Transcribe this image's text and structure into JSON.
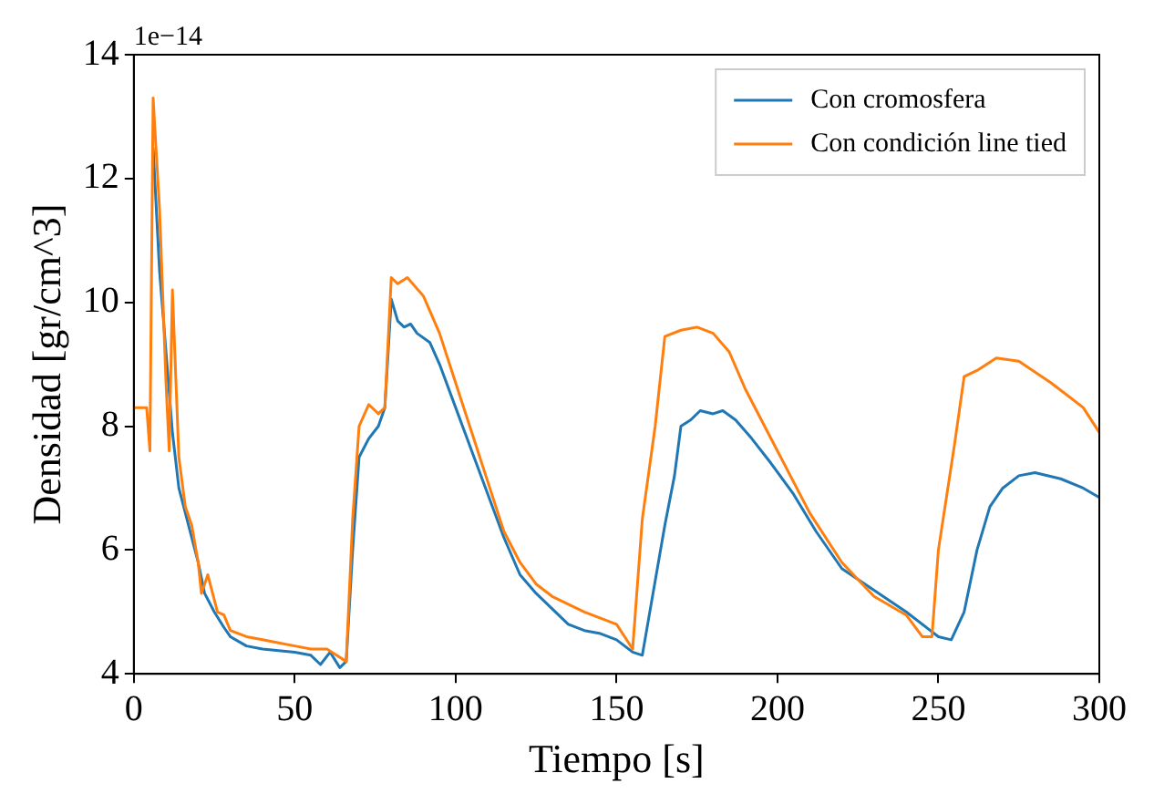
{
  "chart_data": {
    "type": "line",
    "xlabel": "Tiempo [s]",
    "ylabel": "Densidad [gr/cm^3]",
    "annotations": [
      "1e−14"
    ],
    "xlim": [
      0,
      300
    ],
    "xticks": [
      0,
      50,
      100,
      150,
      200,
      250,
      300
    ],
    "ylim": [
      4,
      14
    ],
    "yticks": [
      4,
      6,
      8,
      10,
      12,
      14
    ],
    "grid": false,
    "legend": "top right",
    "marker": "none",
    "line_style": "solid",
    "series": [
      {
        "name": "Con cromosfera",
        "color": "#1f77b4",
        "x": [
          6,
          8,
          12,
          14,
          16,
          20,
          22,
          25,
          28,
          30,
          35,
          40,
          50,
          55,
          58,
          61,
          64,
          66,
          68,
          70,
          73,
          76,
          78,
          80,
          82,
          84,
          86,
          88,
          92,
          95,
          100,
          105,
          110,
          115,
          120,
          125,
          130,
          135,
          140,
          145,
          150,
          155,
          158,
          162,
          165,
          168,
          170,
          173,
          176,
          180,
          183,
          187,
          192,
          198,
          205,
          212,
          220,
          230,
          240,
          250,
          254,
          258,
          262,
          266,
          270,
          275,
          280,
          288,
          295,
          300
        ],
        "values": [
          12.5,
          10.5,
          7.9,
          7.0,
          6.6,
          5.8,
          5.3,
          5.0,
          4.75,
          4.6,
          4.45,
          4.4,
          4.35,
          4.3,
          4.15,
          4.35,
          4.1,
          4.2,
          6.0,
          7.5,
          7.8,
          8.0,
          8.3,
          10.05,
          9.7,
          9.6,
          9.65,
          9.5,
          9.35,
          9.0,
          8.3,
          7.6,
          6.9,
          6.2,
          5.6,
          5.3,
          5.05,
          4.8,
          4.7,
          4.65,
          4.55,
          4.35,
          4.3,
          5.5,
          6.4,
          7.2,
          8.0,
          8.1,
          8.25,
          8.2,
          8.25,
          8.1,
          7.8,
          7.4,
          6.9,
          6.3,
          5.7,
          5.35,
          5.0,
          4.6,
          4.55,
          5.0,
          6.0,
          6.7,
          7.0,
          7.2,
          7.25,
          7.15,
          7.0,
          6.85
        ]
      },
      {
        "name": "Con condición line tied",
        "color": "#ff7f0e",
        "x": [
          0,
          4,
          5,
          6,
          8,
          10,
          11,
          12,
          14,
          16,
          18,
          20,
          21,
          23,
          26,
          28,
          30,
          35,
          40,
          45,
          50,
          55,
          60,
          63,
          66,
          68,
          70,
          73,
          76,
          78,
          80,
          82,
          85,
          90,
          95,
          100,
          105,
          110,
          115,
          120,
          125,
          130,
          140,
          150,
          155,
          158,
          162,
          165,
          170,
          175,
          180,
          185,
          190,
          200,
          210,
          220,
          230,
          240,
          245,
          248,
          250,
          255,
          258,
          262,
          268,
          275,
          285,
          290,
          295,
          300
        ],
        "values": [
          8.3,
          8.3,
          7.6,
          13.3,
          11.5,
          8.7,
          7.6,
          10.2,
          7.5,
          6.7,
          6.4,
          5.8,
          5.3,
          5.6,
          5.0,
          4.95,
          4.7,
          4.6,
          4.55,
          4.5,
          4.45,
          4.4,
          4.4,
          4.3,
          4.2,
          6.5,
          8.0,
          8.35,
          8.2,
          8.3,
          10.4,
          10.3,
          10.4,
          10.1,
          9.5,
          8.7,
          7.9,
          7.1,
          6.3,
          5.8,
          5.45,
          5.25,
          5.0,
          4.8,
          4.4,
          6.5,
          8.0,
          9.45,
          9.55,
          9.6,
          9.5,
          9.2,
          8.6,
          7.6,
          6.6,
          5.8,
          5.25,
          4.95,
          4.6,
          4.6,
          6.0,
          7.7,
          8.8,
          8.9,
          9.1,
          9.05,
          8.7,
          8.5,
          8.3,
          7.9
        ]
      }
    ]
  }
}
